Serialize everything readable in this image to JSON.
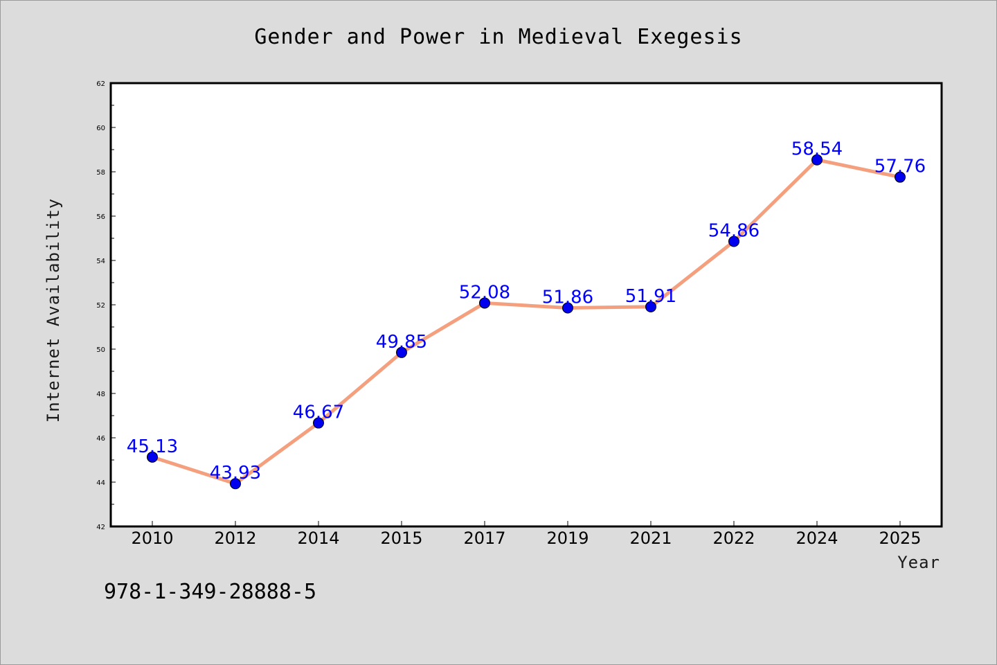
{
  "chart_data": {
    "type": "line",
    "title": "Gender and Power in Medieval Exegesis",
    "xlabel": "Year",
    "ylabel": "Internet Availability",
    "categories": [
      "2010",
      "2012",
      "2014",
      "2015",
      "2017",
      "2019",
      "2021",
      "2022",
      "2024",
      "2025"
    ],
    "series": [
      {
        "values": [
          45.13,
          43.93,
          46.67,
          49.85,
          52.08,
          51.86,
          51.91,
          54.86,
          58.54,
          57.76
        ]
      }
    ],
    "data_labels": [
      "45.13",
      "43.93",
      "46.67",
      "49.85",
      "52.08",
      "51.86",
      "51.91",
      "54.86",
      "58.54",
      "57.76"
    ],
    "ylim": [
      42,
      62
    ],
    "yticks": [
      42,
      44,
      46,
      48,
      50,
      52,
      54,
      56,
      58,
      60,
      62
    ],
    "grid": false,
    "colors": {
      "line": "#f4a07e",
      "marker": "#0000ee",
      "label": "#0000ff",
      "background": "#dcdcdc",
      "plot_background": "#ffffff"
    }
  },
  "footer": {
    "isbn": "978-1-349-28888-5"
  }
}
